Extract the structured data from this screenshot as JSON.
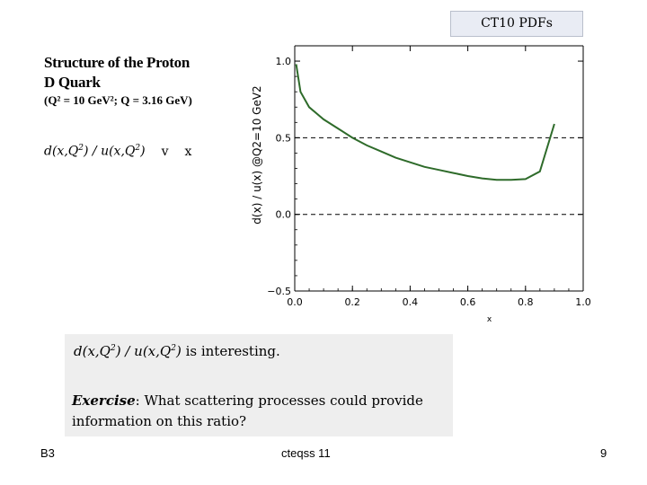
{
  "tag": "CT10 PDFs",
  "title": {
    "line1": "Structure of the Proton",
    "line2": "D Quark",
    "condition": "(Q² = 10 GeV²; Q = 3.16 GeV)"
  },
  "ratio_label": {
    "d": "d(x,Q",
    "sup1": "2",
    "mid": ") / u(x,Q",
    "sup2": "2",
    "end": ")",
    "vs": "v",
    "x": "x"
  },
  "note": {
    "line1_d": "d(x,Q",
    "line1_sup1": "2",
    "line1_mid": ") / u(x,Q",
    "line1_sup2": "2",
    "line1_end": ")",
    "line1_rest": " is interesting.",
    "exercise_label": "Exercise",
    "exercise_text": ":  What scattering processes could provide information on this ratio?"
  },
  "footer": {
    "left": "B3",
    "center": "cteqss 11",
    "right": "9"
  },
  "chart_data": {
    "type": "line",
    "xlabel": "x",
    "ylabel": "d(x) / u(x)   @Q2=10 GeV2",
    "xlim": [
      0.0,
      1.0
    ],
    "ylim": [
      -0.5,
      1.1
    ],
    "x_ticks": [
      "0.0",
      "0.2",
      "0.4",
      "0.6",
      "0.8",
      "1.0"
    ],
    "y_ticks": [
      "−0.5",
      "0.0",
      "0.5",
      "1.0"
    ],
    "reference_lines": [
      0.5,
      0.0
    ],
    "line_color": "#2e6b2a",
    "series": [
      {
        "x": [
          0.005,
          0.02,
          0.05,
          0.1,
          0.15,
          0.2,
          0.25,
          0.3,
          0.35,
          0.4,
          0.45,
          0.5,
          0.55,
          0.6,
          0.65,
          0.7,
          0.75,
          0.8,
          0.85,
          0.9
        ],
        "values": [
          0.98,
          0.8,
          0.7,
          0.62,
          0.56,
          0.5,
          0.45,
          0.41,
          0.37,
          0.34,
          0.31,
          0.29,
          0.27,
          0.25,
          0.235,
          0.225,
          0.225,
          0.23,
          0.28,
          0.59
        ]
      }
    ]
  }
}
